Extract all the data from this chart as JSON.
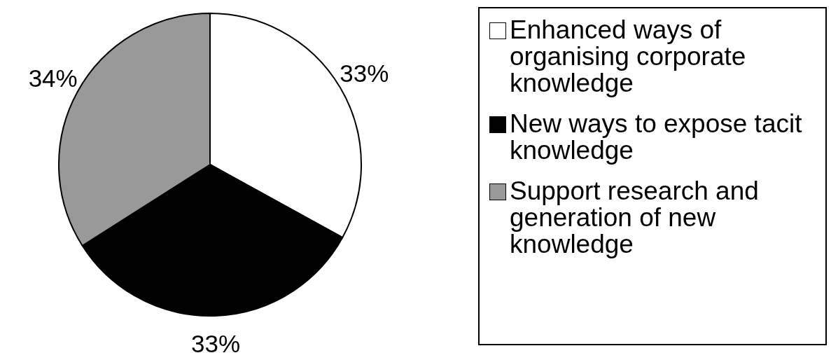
{
  "chart_data": {
    "type": "pie",
    "categories": [
      "Enhanced ways of organising corporate knowledge",
      "New ways to expose tacit knowledge",
      "Support research and generation of new knowledge"
    ],
    "values": [
      33,
      33,
      34
    ],
    "colors": [
      "#ffffff",
      "#000000",
      "#999999"
    ],
    "value_labels": [
      "33%",
      "33%",
      "34%"
    ],
    "legend": "right"
  }
}
